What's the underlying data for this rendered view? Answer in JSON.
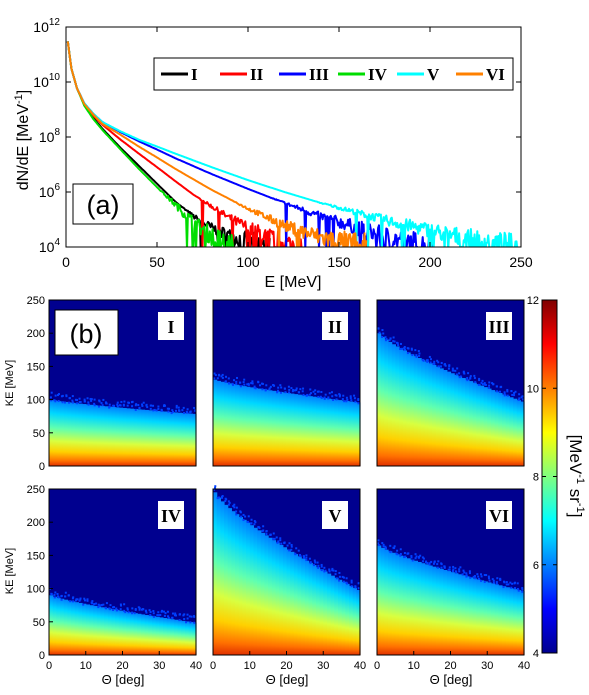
{
  "chart_data": [
    {
      "type": "line",
      "panel_label": "(a)",
      "xlabel": "E [MeV]",
      "ylabel": "dN/dE [MeV",
      "ylabel_sup": "-1",
      "ylabel_close": "]",
      "xlim": [
        0,
        250
      ],
      "ylim": [
        10000,
        1000000000000
      ],
      "yscale": "log",
      "x_ticks": [
        "0",
        "50",
        "100",
        "150",
        "200",
        "250"
      ],
      "y_ticks": [
        {
          "base": "10",
          "exp": "4"
        },
        {
          "base": "10",
          "exp": "6"
        },
        {
          "base": "10",
          "exp": "8"
        },
        {
          "base": "10",
          "exp": "10"
        },
        {
          "base": "10",
          "exp": "12"
        }
      ],
      "legend_position": "top-right",
      "series": [
        {
          "name": "I",
          "color": "#000000",
          "cutoff": 112,
          "points": [
            [
              1,
              300000000000.0
            ],
            [
              3,
              30000000000.0
            ],
            [
              6,
              6000000000.0
            ],
            [
              10,
              1500000000.0
            ],
            [
              15,
              500000000.0
            ],
            [
              20,
              200000000.0
            ],
            [
              30,
              40000000.0
            ],
            [
              40,
              9000000.0
            ],
            [
              50,
              2000000.0
            ],
            [
              60,
              450000.0
            ],
            [
              70,
              130000.0
            ],
            [
              80,
              50000.0
            ],
            [
              90,
              25000.0
            ],
            [
              100,
              15000.0
            ],
            [
              112,
              10000.0
            ]
          ]
        },
        {
          "name": "II",
          "color": "#ff0000",
          "cutoff": 130,
          "points": [
            [
              1,
              300000000000.0
            ],
            [
              3,
              30000000000.0
            ],
            [
              6,
              6000000000.0
            ],
            [
              10,
              1600000000.0
            ],
            [
              15,
              600000000.0
            ],
            [
              20,
              280000000.0
            ],
            [
              30,
              80000000.0
            ],
            [
              40,
              25000000.0
            ],
            [
              50,
              8000000.0
            ],
            [
              60,
              2500000.0
            ],
            [
              70,
              800000.0
            ],
            [
              80,
              300000.0
            ],
            [
              90,
              110000.0
            ],
            [
              100,
              50000.0
            ],
            [
              110,
              25000.0
            ],
            [
              120,
              14000.0
            ],
            [
              130,
              10000.0
            ]
          ]
        },
        {
          "name": "III",
          "color": "#0000ff",
          "cutoff": 202,
          "points": [
            [
              1,
              300000000000.0
            ],
            [
              3,
              30000000000.0
            ],
            [
              6,
              6000000000.0
            ],
            [
              10,
              1700000000.0
            ],
            [
              15,
              700000000.0
            ],
            [
              20,
              350000000.0
            ],
            [
              30,
              150000000.0
            ],
            [
              40,
              70000000.0
            ],
            [
              50,
              35000000.0
            ],
            [
              60,
              17000000.0
            ],
            [
              80,
              4500000.0
            ],
            [
              100,
              1300000.0
            ],
            [
              120,
              400000.0
            ],
            [
              140,
              130000.0
            ],
            [
              160,
              50000.0
            ],
            [
              180,
              20000.0
            ],
            [
              202,
              10000.0
            ]
          ]
        },
        {
          "name": "IV",
          "color": "#00dd00",
          "cutoff": 92,
          "points": [
            [
              1,
              300000000000.0
            ],
            [
              3,
              30000000000.0
            ],
            [
              6,
              6000000000.0
            ],
            [
              10,
              1400000000.0
            ],
            [
              15,
              450000000.0
            ],
            [
              20,
              180000000.0
            ],
            [
              30,
              35000000.0
            ],
            [
              40,
              7000000.0
            ],
            [
              50,
              1500000.0
            ],
            [
              60,
              350000.0
            ],
            [
              70,
              80000.0
            ],
            [
              80,
              25000.0
            ],
            [
              92,
              10000.0
            ]
          ]
        },
        {
          "name": "V",
          "color": "#00ffff",
          "cutoff": 248,
          "points": [
            [
              1,
              300000000000.0
            ],
            [
              3,
              30000000000.0
            ],
            [
              6,
              6000000000.0
            ],
            [
              10,
              1700000000.0
            ],
            [
              15,
              700000000.0
            ],
            [
              20,
              350000000.0
            ],
            [
              30,
              160000000.0
            ],
            [
              40,
              80000000.0
            ],
            [
              50,
              45000000.0
            ],
            [
              60,
              25000000.0
            ],
            [
              80,
              8000000.0
            ],
            [
              100,
              2700000.0
            ],
            [
              120,
              1000000.0
            ],
            [
              140,
              400000.0
            ],
            [
              160,
              180000.0
            ],
            [
              180,
              80000.0
            ],
            [
              200,
              40000.0
            ],
            [
              220,
              20000.0
            ],
            [
              248,
              10000.0
            ]
          ]
        },
        {
          "name": "VI",
          "color": "#ff8000",
          "cutoff": 165,
          "points": [
            [
              1,
              300000000000.0
            ],
            [
              3,
              30000000000.0
            ],
            [
              6,
              6000000000.0
            ],
            [
              10,
              1600000000.0
            ],
            [
              15,
              650000000.0
            ],
            [
              20,
              300000000.0
            ],
            [
              30,
              120000000.0
            ],
            [
              40,
              45000000.0
            ],
            [
              50,
              18000000.0
            ],
            [
              60,
              7000000.0
            ],
            [
              80,
              1200000.0
            ],
            [
              100,
              250000.0
            ],
            [
              120,
              60000.0
            ],
            [
              140,
              22000.0
            ],
            [
              165,
              10000.0
            ]
          ]
        }
      ]
    },
    {
      "type": "heatmap",
      "panel_label": "(b)",
      "xlabel": "Θ [deg]",
      "ylabel": "KE [MeV]",
      "xlim": [
        0,
        40
      ],
      "ylim": [
        0,
        250
      ],
      "x_ticks": [
        "0",
        "10",
        "20",
        "30",
        "40"
      ],
      "y_ticks": [
        "0",
        "50",
        "100",
        "150",
        "200",
        "250"
      ],
      "colorbar": {
        "range": [
          4,
          12
        ],
        "ticks": [
          "4",
          "6",
          "8",
          "10",
          "12"
        ],
        "label": "[MeV",
        "label_sup1": "-1",
        "label_mid": " sr",
        "label_sup2": "-1",
        "label_close": "]"
      },
      "panels": [
        {
          "label": "I",
          "edge_at_0deg": 100,
          "edge_at_40deg": 78
        },
        {
          "label": "II",
          "edge_at_0deg": 130,
          "edge_at_40deg": 95
        },
        {
          "label": "III",
          "edge_at_0deg": 200,
          "edge_at_40deg": 95
        },
        {
          "label": "IV",
          "edge_at_0deg": 90,
          "edge_at_40deg": 48
        },
        {
          "label": "V",
          "edge_at_0deg": 245,
          "edge_at_40deg": 95
        },
        {
          "label": "VI",
          "edge_at_0deg": 165,
          "edge_at_40deg": 95
        }
      ]
    }
  ]
}
